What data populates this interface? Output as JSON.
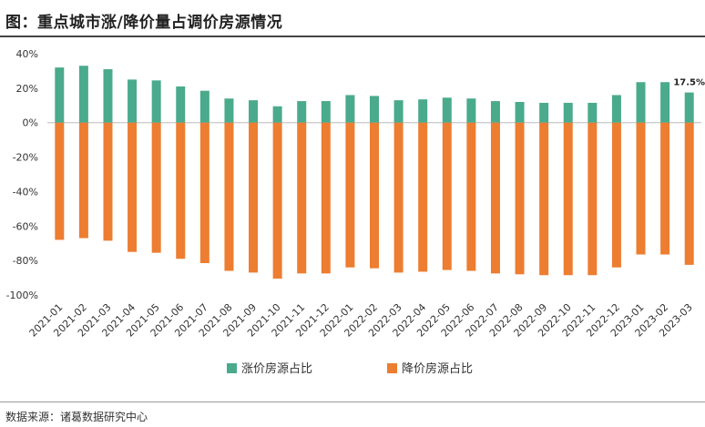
{
  "title": "图：重点城市涨/降价量占调价房源情况",
  "source": "数据来源：诸葛数据研究中心",
  "colors": {
    "up": "#4aaa8c",
    "down": "#ed7d31"
  },
  "chart_data": {
    "type": "bar",
    "categories": [
      "2021-01",
      "2021-02",
      "2021-03",
      "2021-04",
      "2021-05",
      "2021-06",
      "2021-07",
      "2021-08",
      "2021-09",
      "2021-10",
      "2021-11",
      "2021-12",
      "2022-01",
      "2022-02",
      "2022-03",
      "2022-04",
      "2022-05",
      "2022-06",
      "2022-07",
      "2022-08",
      "2022-09",
      "2022-10",
      "2022-11",
      "2022-12",
      "2023-01",
      "2023-02",
      "2023-03"
    ],
    "series": [
      {
        "name": "涨价房源占比",
        "color": "#4aaa8c",
        "values": [
          32,
          33,
          31,
          25,
          24.5,
          21,
          18.5,
          14,
          13,
          9.5,
          12.5,
          12.5,
          16,
          15.5,
          13,
          13.5,
          14.5,
          14,
          12.5,
          12,
          11.5,
          11.5,
          11.5,
          16,
          23.5,
          23.5,
          17.5
        ]
      },
      {
        "name": "降价房源占比",
        "color": "#ed7d31",
        "values": [
          -68,
          -67,
          -68.5,
          -75,
          -75.5,
          -79,
          -81.5,
          -86,
          -87,
          -90.5,
          -87.5,
          -87.5,
          -84,
          -84.5,
          -87,
          -86.5,
          -85.5,
          -86,
          -87.5,
          -88,
          -88.5,
          -88.5,
          -88.5,
          -84,
          -76.5,
          -76.5,
          -82.5
        ]
      }
    ],
    "yticks": [
      "40%",
      "20%",
      "0%",
      "-20%",
      "-40%",
      "-60%",
      "-80%",
      "-100%"
    ],
    "ylim": [
      -100,
      40
    ],
    "annotation": {
      "index": 26,
      "text": "17.5%"
    },
    "legend_position": "bottom",
    "grid": false
  }
}
